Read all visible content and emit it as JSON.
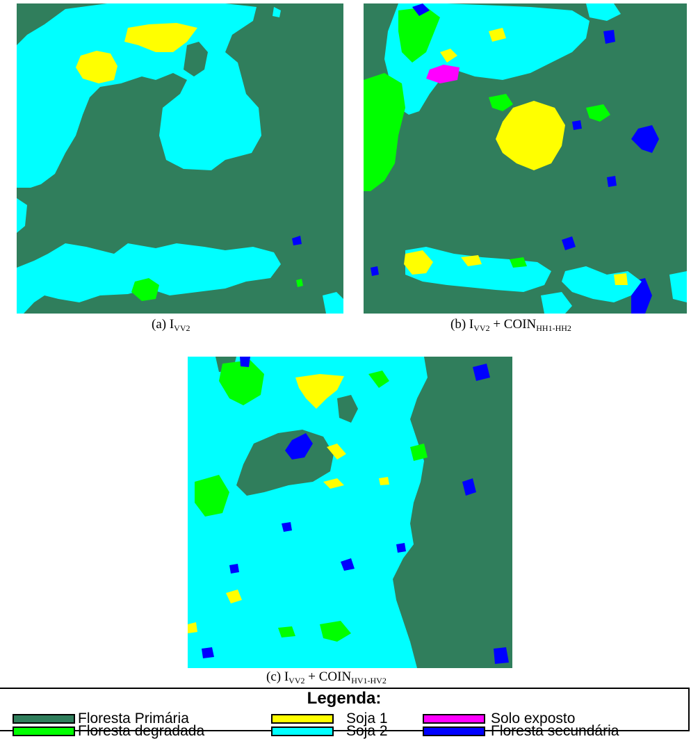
{
  "panels": [
    {
      "id": "a",
      "caption_prefix": "(a) I",
      "caption_sub": "VV2",
      "caption_mid": "",
      "caption_sub2": ""
    },
    {
      "id": "b",
      "caption_prefix": "(b) I",
      "caption_sub": "VV2",
      "caption_mid": " + COIN",
      "caption_sub2": "HH1-HH2"
    },
    {
      "id": "c",
      "caption_prefix": "(c) I",
      "caption_sub": "VV2",
      "caption_mid": " + COIN",
      "caption_sub2": "HV1-HV2"
    }
  ],
  "legend": {
    "title": "Legenda:",
    "items": [
      {
        "label": "Floresta Primária",
        "color": "#307e5c"
      },
      {
        "label": "Floresta degradada",
        "color": "#00ff00"
      },
      {
        "label": "Soja 1",
        "color": "#ffff00"
      },
      {
        "label": "Soja 2",
        "color": "#00ffff"
      },
      {
        "label": "Solo exposto",
        "color": "#ff00ff"
      },
      {
        "label": "Floresta secundária",
        "color": "#0000ff"
      }
    ]
  },
  "colors": {
    "floresta_primaria": "#307e5c",
    "floresta_degradada": "#00ff00",
    "soja_1": "#ffff00",
    "soja_2": "#00ffff",
    "solo_exposto": "#ff00ff",
    "floresta_secundaria": "#0000ff"
  }
}
